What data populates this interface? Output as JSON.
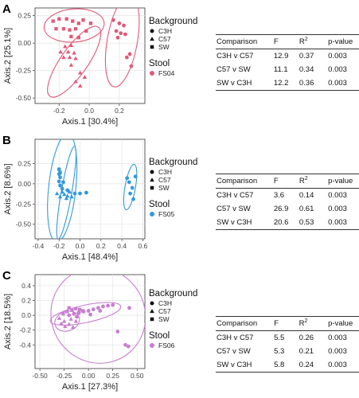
{
  "figure": {
    "panels": [
      {
        "letter": "A",
        "table": {
          "headers": [
            "Comparison",
            "F",
            "R",
            "p-value"
          ],
          "header_sup": "2",
          "rows": [
            [
              "C3H v C57",
              "12.9",
              "0.37",
              "0.003"
            ],
            [
              "C57 v SW",
              "11.1",
              "0.34",
              "0.003"
            ],
            [
              "SW v C3H",
              "12.2",
              "0.36",
              "0.003"
            ]
          ]
        }
      },
      {
        "letter": "B",
        "table": {
          "headers": [
            "Comparison",
            "F",
            "R",
            "p-value"
          ],
          "header_sup": "2",
          "rows": [
            [
              "C3H v C57",
              "3.6",
              "0.14",
              "0.003"
            ],
            [
              "C57 v SW",
              "26.9",
              "0.61",
              "0.003"
            ],
            [
              "SW v C3H",
              "20.6",
              "0.53",
              "0.003"
            ]
          ]
        }
      },
      {
        "letter": "C",
        "table": {
          "headers": [
            "Comparison",
            "F",
            "R",
            "p-value"
          ],
          "header_sup": "2",
          "rows": [
            [
              "C3H v C57",
              "5.5",
              "0.26",
              "0.003"
            ],
            [
              "C57 v SW",
              "5.3",
              "0.21",
              "0.003"
            ],
            [
              "SW v C3H",
              "5.8",
              "0.24",
              "0.003"
            ]
          ]
        }
      }
    ]
  },
  "chart_data": [
    {
      "type": "scatter",
      "panel": "A",
      "xlabel": "Axis.1   [30.4%]",
      "ylabel": "Axis.2   [25.1%]",
      "xlim": [
        -0.36,
        0.37
      ],
      "ylim": [
        -0.55,
        0.32
      ],
      "xticks": [
        -0.2,
        0.0,
        0.2
      ],
      "xtick_labels": [
        "-0.2",
        "0.0",
        "0.2"
      ],
      "yticks": [
        -0.5,
        -0.25,
        0.0,
        0.25
      ],
      "ytick_labels": [
        "-0.50",
        "-0.25",
        "0.00",
        "0.25"
      ],
      "grid": true,
      "color": "#e05a78",
      "legend": {
        "position": "right",
        "background_title": "Background",
        "background_items": [
          {
            "label": "C3H",
            "shape": "circle"
          },
          {
            "label": "C57",
            "shape": "triangle"
          },
          {
            "label": "SW",
            "shape": "square"
          }
        ],
        "stool_title": "Stool",
        "stool_label": "FS04"
      },
      "series": [
        {
          "name": "C3H",
          "shape": "circle",
          "points": [
            [
              0.16,
              0.21
            ],
            [
              0.2,
              0.18
            ],
            [
              0.23,
              0.16
            ],
            [
              0.18,
              0.11
            ],
            [
              0.21,
              0.09
            ],
            [
              0.24,
              0.08
            ],
            [
              0.19,
              0.05
            ],
            [
              0.27,
              -0.1
            ],
            [
              0.25,
              -0.13
            ],
            [
              0.28,
              -0.21
            ]
          ]
        },
        {
          "name": "C57",
          "shape": "triangle",
          "points": [
            [
              -0.16,
              -0.03
            ],
            [
              -0.12,
              -0.02
            ],
            [
              -0.19,
              -0.08
            ],
            [
              -0.14,
              -0.08
            ],
            [
              -0.1,
              -0.09
            ],
            [
              -0.17,
              -0.13
            ],
            [
              -0.13,
              -0.13
            ],
            [
              -0.09,
              -0.14
            ],
            [
              -0.12,
              -0.2
            ],
            [
              -0.06,
              -0.27
            ],
            [
              -0.03,
              -0.31
            ],
            [
              -0.09,
              -0.35
            ],
            [
              -0.06,
              -0.39
            ]
          ]
        },
        {
          "name": "SW",
          "shape": "square",
          "points": [
            [
              -0.24,
              0.2
            ],
            [
              -0.2,
              0.22
            ],
            [
              -0.15,
              0.22
            ],
            [
              -0.11,
              0.2
            ],
            [
              -0.07,
              0.18
            ],
            [
              -0.04,
              0.21
            ],
            [
              0.01,
              0.18
            ],
            [
              -0.22,
              0.13
            ],
            [
              -0.17,
              0.13
            ],
            [
              -0.13,
              0.12
            ],
            [
              -0.09,
              0.13
            ],
            [
              -0.02,
              0.11
            ],
            [
              -0.12,
              0.06
            ],
            [
              -0.07,
              0.05
            ]
          ]
        }
      ],
      "ellipses": [
        {
          "cx": -0.1,
          "cy": 0.16,
          "rx": 0.2,
          "ry": 0.11,
          "angle": -5
        },
        {
          "cx": -0.1,
          "cy": -0.17,
          "rx": 0.28,
          "ry": 0.09,
          "angle": -55
        },
        {
          "cx": 0.22,
          "cy": 0.02,
          "rx": 0.31,
          "ry": 0.1,
          "angle": -80
        }
      ]
    },
    {
      "type": "scatter",
      "panel": "B",
      "xlabel": "Axis.1   [48.4%]",
      "ylabel": "Axis.2   [8.6%]",
      "xlim": [
        -0.43,
        0.62
      ],
      "ylim": [
        -0.68,
        0.55
      ],
      "xticks": [
        -0.4,
        -0.2,
        0.0,
        0.2,
        0.4,
        0.6
      ],
      "xtick_labels": [
        "-0.4",
        "-0.2",
        "0.0",
        "0.2",
        "0.4",
        "0.6"
      ],
      "yticks": [
        -0.5,
        -0.25,
        0.0,
        0.25
      ],
      "ytick_labels": [
        "-0.50",
        "-0.25",
        "0.00",
        "0.25"
      ],
      "grid": true,
      "color": "#3399dd",
      "legend": {
        "position": "right",
        "background_title": "Background",
        "background_items": [
          {
            "label": "C3H",
            "shape": "circle"
          },
          {
            "label": "C57",
            "shape": "triangle"
          },
          {
            "label": "SW",
            "shape": "square"
          }
        ],
        "stool_title": "Stool",
        "stool_label": "FS05"
      },
      "series": [
        {
          "name": "C3H",
          "shape": "circle",
          "points": [
            [
              -0.2,
              0.12
            ],
            [
              -0.19,
              0.08
            ],
            [
              -0.2,
              0.03
            ],
            [
              -0.19,
              -0.02
            ],
            [
              -0.17,
              -0.06
            ],
            [
              -0.12,
              -0.08
            ],
            [
              -0.05,
              -0.12
            ],
            [
              0.0,
              -0.12
            ],
            [
              0.06,
              -0.11
            ],
            [
              -0.16,
              0.02
            ],
            [
              0.45,
              0.07
            ],
            [
              0.47,
              0.02
            ],
            [
              0.5,
              -0.05
            ],
            [
              0.48,
              -0.12
            ],
            [
              0.51,
              -0.19
            ],
            [
              0.53,
              0.09
            ]
          ]
        },
        {
          "name": "C57",
          "shape": "triangle",
          "points": [
            [
              -0.22,
              -0.12
            ],
            [
              -0.19,
              -0.16
            ],
            [
              -0.15,
              -0.13
            ],
            [
              -0.12,
              -0.15
            ],
            [
              -0.1,
              -0.1
            ],
            [
              -0.08,
              -0.16
            ],
            [
              -0.17,
              -0.1
            ],
            [
              -0.13,
              -0.18
            ]
          ]
        },
        {
          "name": "SW",
          "shape": "square",
          "points": [
            [
              -0.2,
              0.18
            ],
            [
              -0.19,
              0.14
            ]
          ]
        }
      ],
      "ellipses": [
        {
          "cx": -0.17,
          "cy": -0.05,
          "rx": 0.52,
          "ry": 0.13,
          "angle": -84
        },
        {
          "cx": -0.13,
          "cy": -0.11,
          "rx": 0.45,
          "ry": 0.05,
          "angle": -80
        },
        {
          "cx": 0.48,
          "cy": -0.04,
          "rx": 0.22,
          "ry": 0.05,
          "angle": -80
        }
      ]
    },
    {
      "type": "scatter",
      "panel": "C",
      "xlabel": "Axis.1   [27.3%]",
      "ylabel": "Axis.2   [18.5%]",
      "xlim": [
        -0.55,
        0.58
      ],
      "ylim": [
        -0.72,
        0.55
      ],
      "xticks": [
        -0.5,
        -0.25,
        0.0,
        0.25,
        0.5
      ],
      "xtick_labels": [
        "-0.50",
        "-0.25",
        "0.00",
        "0.25",
        "0.50"
      ],
      "yticks": [
        -0.4,
        -0.2,
        0.0,
        0.2,
        0.4
      ],
      "ytick_labels": [
        "-0.4",
        "-0.2",
        "0.0",
        "0.2",
        "0.4"
      ],
      "grid": true,
      "color": "#c77fcf",
      "legend": {
        "position": "right",
        "background_title": "Background",
        "background_items": [
          {
            "label": "C3H",
            "shape": "circle"
          },
          {
            "label": "C57",
            "shape": "triangle"
          },
          {
            "label": "SW",
            "shape": "square"
          }
        ],
        "stool_title": "Stool",
        "stool_label": "FS06"
      },
      "series": [
        {
          "name": "C3H",
          "shape": "circle",
          "points": [
            [
              -0.2,
              0.0
            ],
            [
              -0.15,
              0.02
            ],
            [
              -0.1,
              0.04
            ],
            [
              -0.05,
              0.05
            ],
            [
              0.0,
              0.06
            ],
            [
              0.05,
              0.08
            ],
            [
              0.1,
              0.1
            ],
            [
              0.15,
              0.12
            ],
            [
              0.2,
              0.13
            ],
            [
              0.25,
              0.14
            ],
            [
              -0.12,
              -0.02
            ],
            [
              0.02,
              0.01
            ],
            [
              0.12,
              0.06
            ],
            [
              0.42,
              0.1
            ],
            [
              0.3,
              -0.22
            ],
            [
              0.38,
              -0.4
            ],
            [
              0.41,
              -0.42
            ]
          ]
        },
        {
          "name": "C57",
          "shape": "triangle",
          "points": [
            [
              -0.3,
              -0.04
            ],
            [
              -0.25,
              -0.08
            ],
            [
              -0.2,
              -0.12
            ],
            [
              -0.16,
              -0.16
            ],
            [
              -0.24,
              -0.15
            ],
            [
              -0.13,
              -0.08
            ],
            [
              -0.28,
              -0.11
            ],
            [
              -0.18,
              -0.05
            ]
          ]
        },
        {
          "name": "SW",
          "shape": "square",
          "points": [
            [
              -0.26,
              0.02
            ],
            [
              -0.22,
              0.05
            ],
            [
              -0.17,
              0.07
            ],
            [
              -0.13,
              0.09
            ],
            [
              -0.09,
              0.08
            ],
            [
              -0.2,
              0.1
            ],
            [
              -0.1,
              0.03
            ],
            [
              -0.06,
              0.06
            ]
          ]
        }
      ],
      "ellipses": [
        {
          "cx": -0.03,
          "cy": 0.02,
          "rx": 0.37,
          "ry": 0.09,
          "angle": -12
        },
        {
          "cx": -0.22,
          "cy": -0.08,
          "rx": 0.13,
          "ry": 0.1,
          "angle": -20
        },
        {
          "cx": 0.1,
          "cy": 0.0,
          "rx": 0.48,
          "ry": 0.5,
          "angle": -35
        }
      ]
    }
  ]
}
